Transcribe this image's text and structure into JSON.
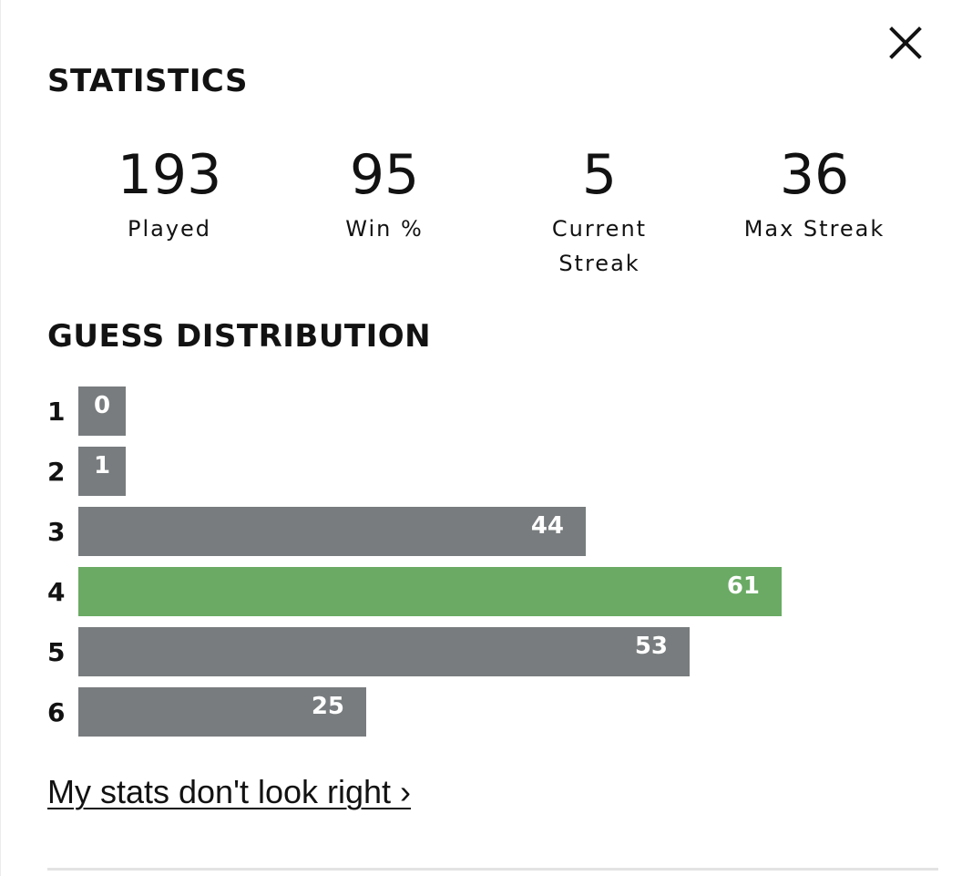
{
  "modal": {
    "close_icon": "close-icon",
    "statistics_heading": "STATISTICS",
    "stats": [
      {
        "value": "193",
        "label": "Played"
      },
      {
        "value": "95",
        "label": "Win %"
      },
      {
        "value": "5",
        "label": "Current\nStreak"
      },
      {
        "value": "36",
        "label": "Max Streak"
      }
    ],
    "distribution_heading": "GUESS DISTRIBUTION",
    "distribution": [
      {
        "guess": "1",
        "count": "0",
        "fraction": 0.0,
        "highlight": false
      },
      {
        "guess": "2",
        "count": "1",
        "fraction": 0.0164,
        "highlight": false
      },
      {
        "guess": "3",
        "count": "44",
        "fraction": 0.7213,
        "highlight": false
      },
      {
        "guess": "4",
        "count": "61",
        "fraction": 1.0,
        "highlight": true
      },
      {
        "guess": "5",
        "count": "53",
        "fraction": 0.8689,
        "highlight": false
      },
      {
        "guess": "6",
        "count": "25",
        "fraction": 0.4098,
        "highlight": false
      }
    ],
    "stats_link": "My stats don't look right ›"
  },
  "colors": {
    "bar": "#787c7e",
    "bar_highlight": "#6aaa64",
    "text": "#121212"
  }
}
